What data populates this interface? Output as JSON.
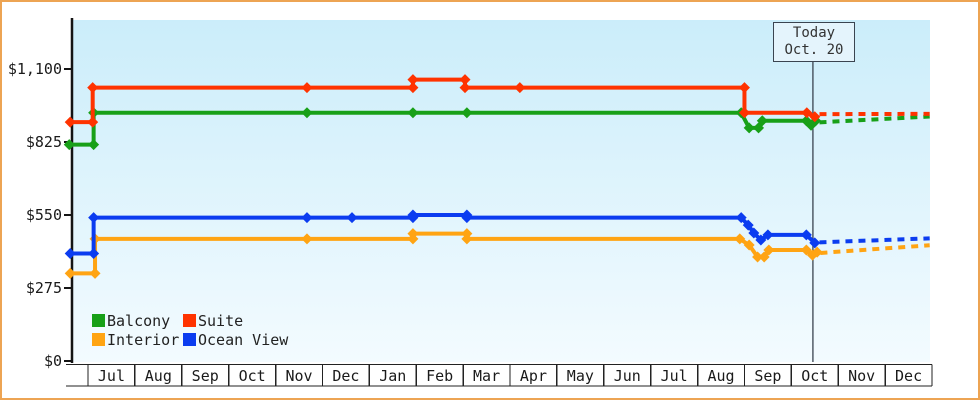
{
  "colors": {
    "frame": "#EDA453",
    "plot_top": "#CBEDFA",
    "plot_bottom": "#F3FBFF",
    "axis": "#141414",
    "grid_row": "#222222",
    "today_line": "#3a4450",
    "label_text": "#1a1a1a"
  },
  "chart_data": {
    "type": "line",
    "title": "",
    "ylim": [
      0,
      1285
    ],
    "grid": "off",
    "x_axis": {
      "unit": "month",
      "labels": [
        "Jul",
        "Aug",
        "Sep",
        "Oct",
        "Nov",
        "Dec",
        "Jan",
        "Feb",
        "Mar",
        "Apr",
        "May",
        "Jun",
        "Jul",
        "Aug",
        "Sep",
        "Oct",
        "Nov",
        "Dec"
      ]
    },
    "y_axis": {
      "ticks": [
        {
          "label": "$0",
          "value": 0
        },
        {
          "label": "$275",
          "value": 275
        },
        {
          "label": "$550",
          "value": 550
        },
        {
          "label": "$825",
          "value": 825
        },
        {
          "label": "$1,100",
          "value": 1100
        }
      ]
    },
    "today": {
      "line1": "Today",
      "line2": "Oct. 20",
      "x_month": 15.46
    },
    "series": [
      {
        "name": "Balcony",
        "color": "#18A018",
        "points": [
          [
            -0.4,
            815
          ],
          [
            0.12,
            815
          ],
          [
            0.12,
            935
          ],
          [
            4.67,
            935
          ],
          [
            6.93,
            935
          ],
          [
            8.08,
            935
          ],
          [
            13.93,
            935
          ],
          [
            14.1,
            878
          ],
          [
            14.3,
            878
          ],
          [
            14.38,
            905
          ],
          [
            15.32,
            905
          ],
          [
            15.42,
            888
          ],
          [
            15.52,
            905
          ]
        ],
        "projection": [
          [
            15.6,
            899
          ],
          [
            17.95,
            921
          ]
        ]
      },
      {
        "name": "Suite",
        "color": "#FF3300",
        "points": [
          [
            -0.38,
            900
          ],
          [
            0.1,
            900
          ],
          [
            0.1,
            1030
          ],
          [
            4.67,
            1030
          ],
          [
            6.93,
            1030
          ],
          [
            6.93,
            1060
          ],
          [
            8.04,
            1060
          ],
          [
            8.04,
            1030
          ],
          [
            9.21,
            1030
          ],
          [
            14.0,
            1030
          ],
          [
            14.0,
            935
          ],
          [
            15.33,
            935
          ],
          [
            15.5,
            920
          ]
        ],
        "projection": [
          [
            15.6,
            930
          ],
          [
            17.95,
            931
          ]
        ]
      },
      {
        "name": "Interior",
        "color": "#FFA413",
        "points": [
          [
            -0.38,
            330
          ],
          [
            0.15,
            330
          ],
          [
            0.15,
            460
          ],
          [
            4.67,
            460
          ],
          [
            6.93,
            460
          ],
          [
            6.93,
            480
          ],
          [
            8.08,
            480
          ],
          [
            8.08,
            460
          ],
          [
            13.9,
            460
          ],
          [
            14.1,
            437
          ],
          [
            14.28,
            392
          ],
          [
            14.42,
            392
          ],
          [
            14.52,
            418
          ],
          [
            15.32,
            418
          ],
          [
            15.45,
            399
          ],
          [
            15.55,
            410
          ]
        ],
        "projection": [
          [
            15.62,
            407
          ],
          [
            17.95,
            436
          ]
        ]
      },
      {
        "name": "Ocean View",
        "color": "#0B3CF0",
        "points": [
          [
            -0.38,
            405
          ],
          [
            0.12,
            405
          ],
          [
            0.12,
            540
          ],
          [
            4.67,
            540
          ],
          [
            5.63,
            540
          ],
          [
            6.93,
            540
          ],
          [
            6.93,
            550
          ],
          [
            8.08,
            550
          ],
          [
            8.08,
            540
          ],
          [
            13.93,
            540
          ],
          [
            14.08,
            512
          ],
          [
            14.2,
            482
          ],
          [
            14.35,
            456
          ],
          [
            14.5,
            475
          ],
          [
            15.32,
            475
          ],
          [
            15.5,
            445
          ]
        ],
        "projection": [
          [
            15.6,
            447
          ],
          [
            17.95,
            462
          ]
        ]
      }
    ],
    "legend": {
      "position": "bottom-left",
      "items": [
        {
          "label": "Balcony",
          "color": "#18A018"
        },
        {
          "label": "Suite",
          "color": "#FF3300"
        },
        {
          "label": "Interior",
          "color": "#FFA413"
        },
        {
          "label": "Ocean View",
          "color": "#0B3CF0"
        }
      ]
    }
  }
}
